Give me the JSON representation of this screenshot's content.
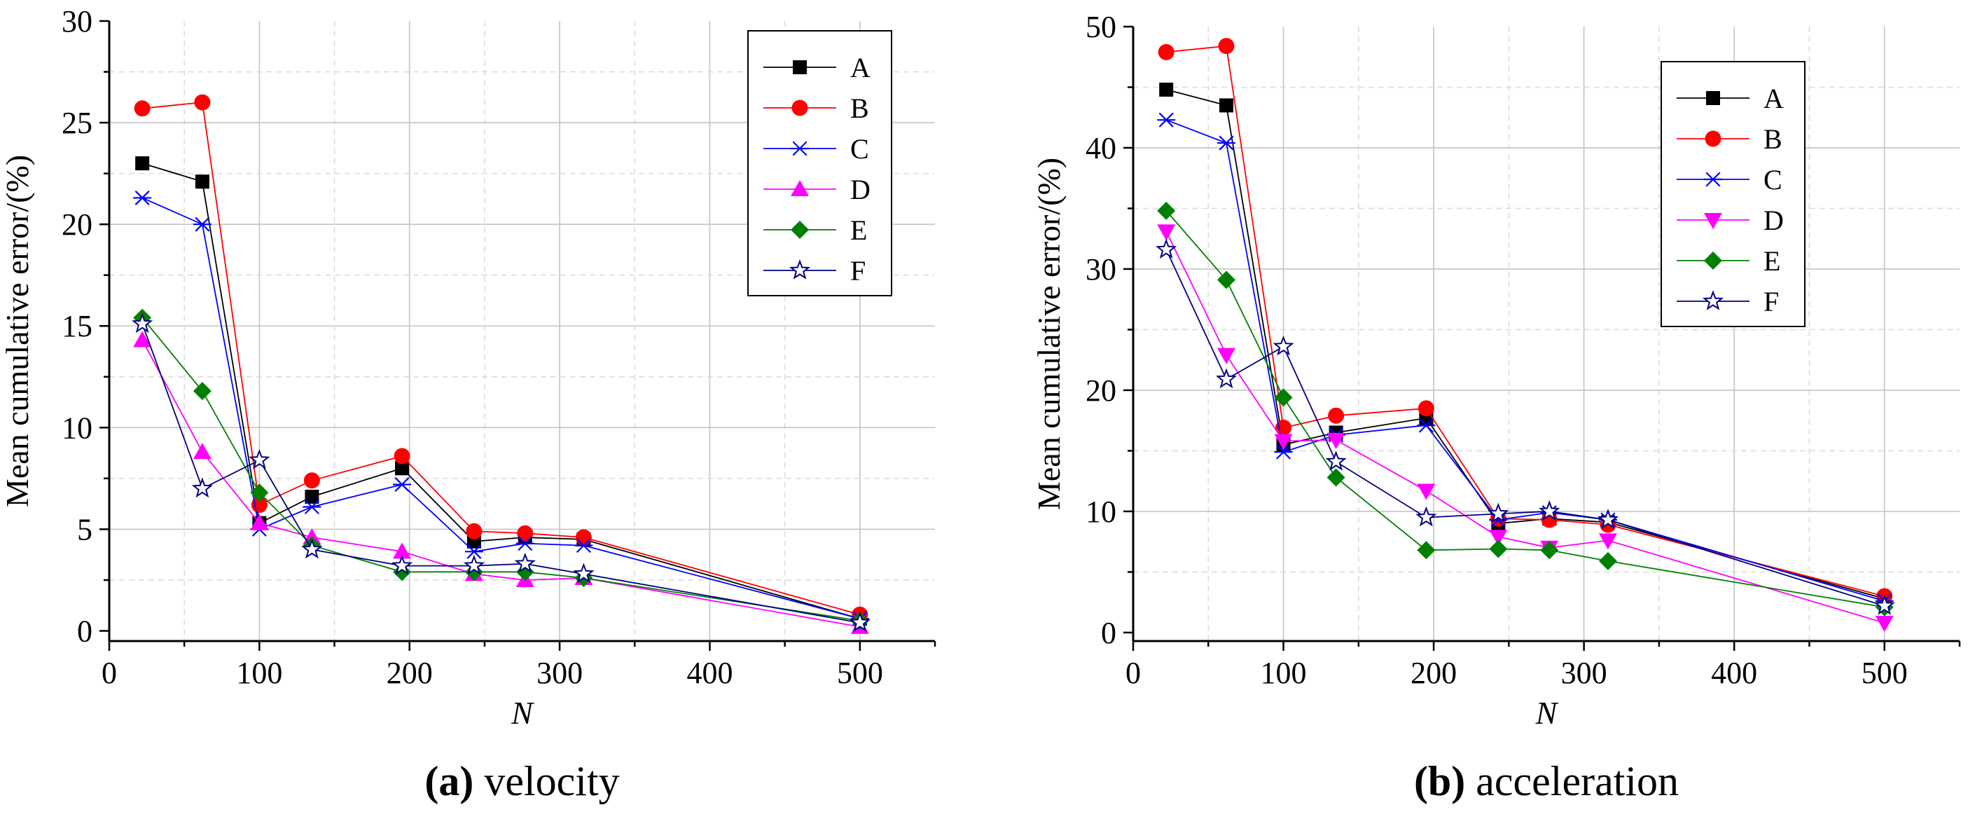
{
  "chart_data": [
    {
      "id": "a",
      "type": "line",
      "caption_letter": "(a)",
      "caption_text": "velocity",
      "xlabel": "N",
      "ylabel": "Mean cumulative error/(%)",
      "xlim": [
        0,
        550
      ],
      "ylim": [
        -0.5,
        30
      ],
      "xticks": [
        0,
        100,
        200,
        300,
        400,
        500
      ],
      "yticks": [
        0,
        5,
        10,
        15,
        20,
        25,
        30
      ],
      "grid": true,
      "legend_position": "top-right",
      "x": [
        22,
        62,
        100,
        135,
        195,
        243,
        277,
        316,
        500
      ],
      "series": [
        {
          "name": "A",
          "color": "#000000",
          "marker": "square",
          "values": [
            23.0,
            22.1,
            5.3,
            6.6,
            8.0,
            4.4,
            4.6,
            4.5,
            0.6
          ]
        },
        {
          "name": "B",
          "color": "#ff0000",
          "marker": "circle",
          "values": [
            25.7,
            26.0,
            6.2,
            7.4,
            8.6,
            4.9,
            4.8,
            4.6,
            0.8
          ]
        },
        {
          "name": "C",
          "color": "#0000ff",
          "marker": "asterisk",
          "values": [
            21.3,
            20.0,
            5.0,
            6.1,
            7.2,
            3.9,
            4.3,
            4.2,
            0.6
          ]
        },
        {
          "name": "D",
          "color": "#ff00ff",
          "marker": "triangle-up",
          "values": [
            14.3,
            8.8,
            5.3,
            4.6,
            3.9,
            2.8,
            2.5,
            2.6,
            0.2
          ]
        },
        {
          "name": "E",
          "color": "#008000",
          "marker": "diamond",
          "values": [
            15.4,
            11.8,
            6.8,
            4.2,
            2.9,
            2.9,
            2.9,
            2.6,
            0.5
          ]
        },
        {
          "name": "F",
          "color": "#000080",
          "marker": "star",
          "values": [
            15.1,
            7.0,
            8.4,
            4.0,
            3.2,
            3.2,
            3.3,
            2.8,
            0.4
          ]
        }
      ]
    },
    {
      "id": "b",
      "type": "line",
      "caption_letter": "(b)",
      "caption_text": "acceleration",
      "xlabel": "N",
      "ylabel": "Mean cumulative error/(%)",
      "xlim": [
        0,
        550
      ],
      "ylim": [
        -0.7,
        50
      ],
      "xticks": [
        0,
        100,
        200,
        300,
        400,
        500
      ],
      "yticks": [
        0,
        10,
        20,
        30,
        40,
        50
      ],
      "grid": true,
      "legend_position": "top-right",
      "x": [
        22,
        62,
        100,
        135,
        195,
        243,
        277,
        316,
        500
      ],
      "series": [
        {
          "name": "A",
          "color": "#000000",
          "marker": "square",
          "values": [
            44.8,
            43.5,
            15.5,
            16.5,
            17.7,
            9.0,
            9.4,
            9.1,
            2.8
          ]
        },
        {
          "name": "B",
          "color": "#ff0000",
          "marker": "circle",
          "values": [
            47.9,
            48.4,
            16.9,
            17.9,
            18.5,
            9.4,
            9.3,
            8.9,
            3.0
          ]
        },
        {
          "name": "C",
          "color": "#0000ff",
          "marker": "asterisk",
          "values": [
            42.3,
            40.4,
            14.9,
            16.3,
            17.1,
            9.3,
            9.9,
            9.3,
            2.6
          ]
        },
        {
          "name": "D",
          "color": "#ff00ff",
          "marker": "triangle-down",
          "values": [
            33.1,
            22.9,
            15.8,
            15.9,
            11.7,
            7.9,
            7.0,
            7.6,
            0.8
          ]
        },
        {
          "name": "E",
          "color": "#008000",
          "marker": "diamond",
          "values": [
            34.8,
            29.1,
            19.4,
            12.8,
            6.8,
            6.9,
            6.8,
            5.9,
            2.1
          ]
        },
        {
          "name": "F",
          "color": "#000080",
          "marker": "star",
          "values": [
            31.6,
            20.9,
            23.6,
            14.1,
            9.5,
            9.8,
            10.0,
            9.3,
            2.2
          ]
        }
      ]
    }
  ]
}
